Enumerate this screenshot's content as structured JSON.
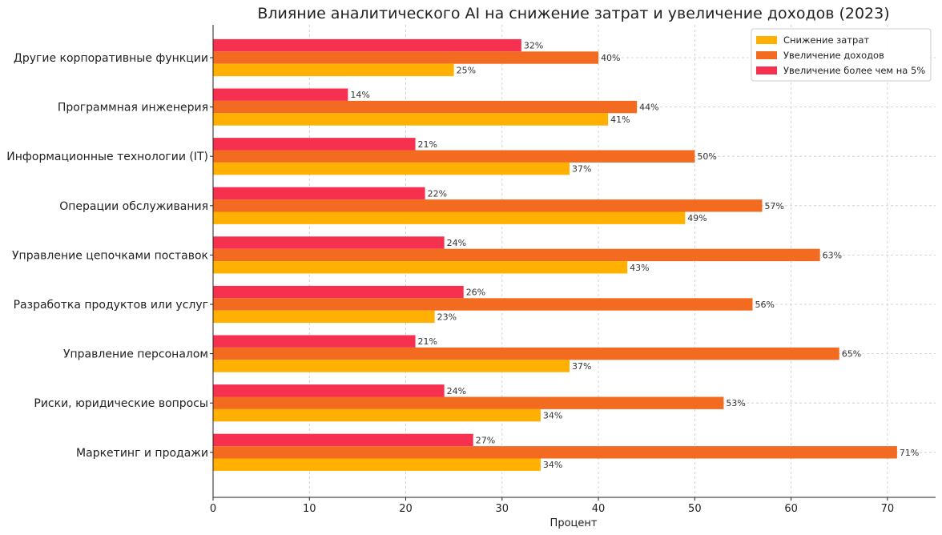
{
  "chart_data": {
    "type": "bar",
    "orientation": "horizontal",
    "title": "Влияние аналитического AI на снижение затрат и увеличение доходов (2023)",
    "xlabel": "Процент",
    "ylabel": "",
    "xlim": [
      0,
      75
    ],
    "xticks": [
      0,
      10,
      20,
      30,
      40,
      50,
      60,
      70
    ],
    "grid": true,
    "legend_position": "top-right",
    "value_suffix": "%",
    "categories": [
      "Другие корпоративные функции",
      "Программная инженерия",
      "Информационные технологии (IT)",
      "Операции обслуживания",
      "Управление цепочками поставок",
      "Разработка продуктов или услуг",
      "Управление персоналом",
      "Риски, юридические вопросы",
      "Маркетинг и продажи"
    ],
    "series": [
      {
        "name": "Снижение затрат",
        "color": "#ffb000",
        "values": [
          25,
          41,
          37,
          49,
          43,
          23,
          37,
          34,
          34
        ]
      },
      {
        "name": "Увеличение доходов",
        "color": "#f26b21",
        "values": [
          40,
          44,
          50,
          57,
          63,
          56,
          65,
          53,
          71
        ]
      },
      {
        "name": "Увеличение более чем на 5%",
        "color": "#f5314f",
        "values": [
          32,
          14,
          21,
          22,
          24,
          26,
          21,
          24,
          27
        ]
      }
    ]
  }
}
